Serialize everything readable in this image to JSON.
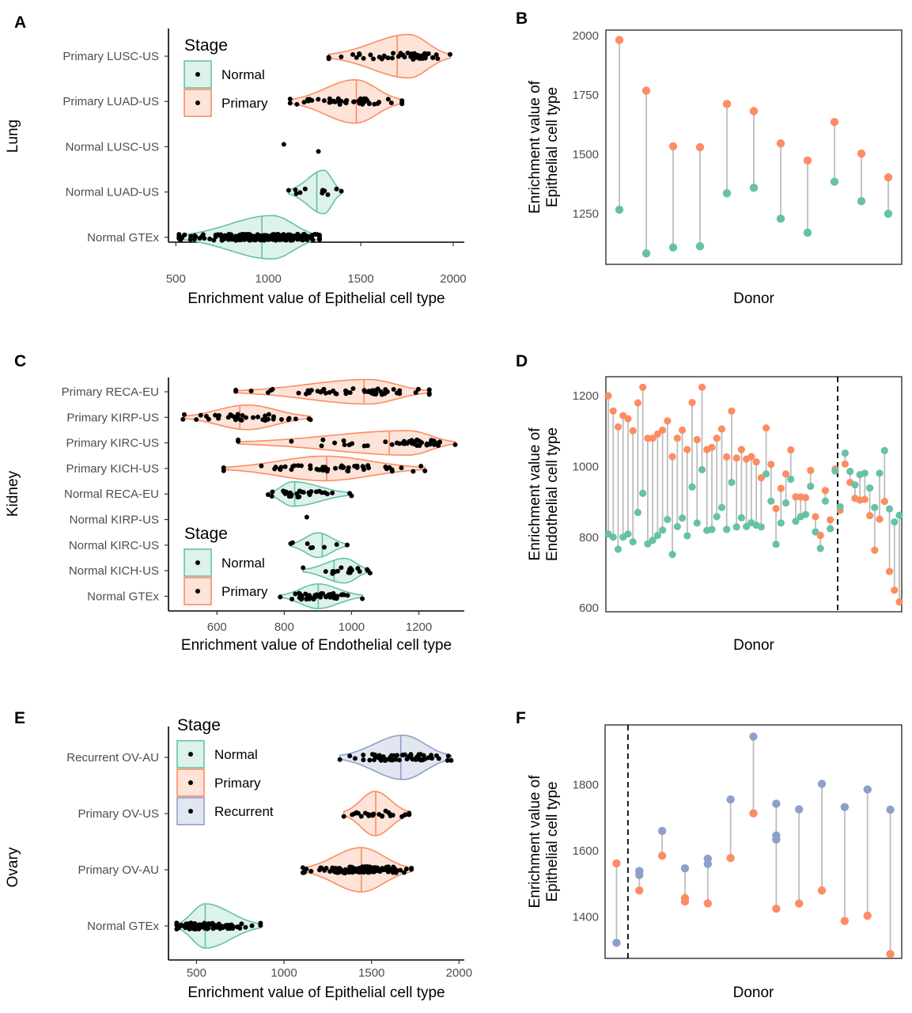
{
  "colors": {
    "Normal": {
      "stroke": "#66C2A5",
      "fill": "#DDF2EA"
    },
    "Primary": {
      "stroke": "#FC8D62",
      "fill": "#FDE3D8"
    },
    "Recurrent": {
      "stroke": "#8DA0CB",
      "fill": "#E1E6F1"
    },
    "segment": "#BDBDBD",
    "point": "#000000"
  },
  "chart_data": [
    {
      "panel": "A",
      "type": "violin",
      "orientation": "horizontal",
      "facet_label": "Lung",
      "xlabel": "Enrichment value of Epithelial cell type",
      "xlim": [
        460,
        2060
      ],
      "xticks": [
        500,
        1000,
        1500,
        2000
      ],
      "legend": {
        "title": "Stage",
        "entries": [
          "Normal",
          "Primary"
        ],
        "placement": "top-left"
      },
      "categories": [
        {
          "label": "Primary LUSC-US",
          "stage": "Primary",
          "min": 1327,
          "median": 1697,
          "max": 1983,
          "mode": 1760,
          "n": 50
        },
        {
          "label": "Primary LUAD-US",
          "stage": "Primary",
          "min": 1118,
          "median": 1476,
          "max": 1723,
          "mode": 1470,
          "n": 45
        },
        {
          "label": "Normal LUSC-US",
          "stage": "Normal",
          "points": [
            1084,
            1271
          ],
          "n": 2
        },
        {
          "label": "Normal LUAD-US",
          "stage": "Normal",
          "min": 1110,
          "median": 1262,
          "max": 1395,
          "mode": 1300,
          "n": 12
        },
        {
          "label": "Normal GTEx",
          "stage": "Normal",
          "min": 517,
          "median": 965,
          "max": 1277,
          "mode": 1020,
          "n": 250
        }
      ]
    },
    {
      "panel": "B",
      "type": "dumbbell",
      "xlabel": "Donor",
      "ylabel": "Enrichment value of Epithelial cell type",
      "ylim": [
        1037,
        2023
      ],
      "yticks": [
        1250,
        1500,
        1750,
        2000
      ],
      "series": [
        {
          "name": "Primary",
          "values": [
            1981,
            1768,
            1534,
            1530,
            1712,
            1682,
            1546,
            1474,
            1636,
            1503,
            1403
          ]
        },
        {
          "name": "Normal",
          "values": [
            1267,
            1083,
            1108,
            1113,
            1336,
            1359,
            1229,
            1170,
            1385,
            1303,
            1250
          ]
        }
      ]
    },
    {
      "panel": "C",
      "type": "violin",
      "orientation": "horizontal",
      "facet_label": "Kidney",
      "xlabel": "Enrichment value of Endothelial cell type",
      "xlim": [
        456,
        1335
      ],
      "xticks": [
        600,
        800,
        1000,
        1200
      ],
      "legend": {
        "title": "Stage",
        "entries": [
          "Normal",
          "Primary"
        ],
        "placement": "bottom-left"
      },
      "categories": [
        {
          "label": "Primary RECA-EU",
          "stage": "Primary",
          "min": 656,
          "median": 1037,
          "max": 1231,
          "mode": 1050,
          "n": 55
        },
        {
          "label": "Primary KIRP-US",
          "stage": "Primary",
          "min": 499,
          "median": 668,
          "max": 878,
          "mode": 690,
          "n": 35
        },
        {
          "label": "Primary KIRC-US",
          "stage": "Primary",
          "min": 663,
          "median": 1112,
          "max": 1308,
          "mode": 1170,
          "n": 50
        },
        {
          "label": "Primary KICH-US",
          "stage": "Primary",
          "min": 620,
          "median": 926,
          "max": 1218,
          "mode": 920,
          "n": 50
        },
        {
          "label": "Normal RECA-EU",
          "stage": "Normal",
          "min": 752,
          "median": 831,
          "max": 1000,
          "mode": 825,
          "n": 30
        },
        {
          "label": "Normal KIRP-US",
          "stage": "Normal",
          "points": [
            867
          ],
          "n": 1
        },
        {
          "label": "Normal KIRC-US",
          "stage": "Normal",
          "min": 819,
          "median": 913,
          "max": 987,
          "mode": 900,
          "n": 8
        },
        {
          "label": "Normal KICH-US",
          "stage": "Normal",
          "min": 856,
          "median": 948,
          "max": 1055,
          "mode": 980,
          "n": 18
        },
        {
          "label": "Normal GTEx",
          "stage": "Normal",
          "min": 788,
          "median": 901,
          "max": 1032,
          "mode": 900,
          "n": 45
        }
      ]
    },
    {
      "panel": "D",
      "type": "dumbbell",
      "xlabel": "Donor",
      "ylabel": "Enrichment value of Endothelial cell type",
      "ylim": [
        589,
        1254
      ],
      "yticks": [
        600,
        800,
        1000,
        1200
      ],
      "divider_after_donor": 47,
      "series": [
        {
          "name": "Primary",
          "values": [
            1200,
            1157,
            1112,
            1144,
            1135,
            1101,
            1180,
            1224,
            1080,
            1080,
            1092,
            1103,
            1129,
            1028,
            1080,
            1103,
            1048,
            1181,
            1076,
            1224,
            1048,
            1054,
            1080,
            1106,
            1027,
            1157,
            1024,
            1048,
            1021,
            1028,
            1013,
            968,
            1109,
            1006,
            881,
            938,
            979,
            1047,
            914,
            914,
            912,
            989,
            858,
            805,
            932,
            849,
            993,
            876,
            1007,
            955,
            910,
            905,
            907,
            861,
            763,
            851,
            901,
            703,
            650,
            617
          ]
        },
        {
          "name": "Normal",
          "values": [
            809,
            800,
            766,
            800,
            809,
            787,
            870,
            924,
            781,
            791,
            805,
            820,
            850,
            751,
            830,
            854,
            804,
            942,
            840,
            991,
            819,
            822,
            858,
            884,
            822,
            955,
            829,
            855,
            830,
            841,
            834,
            829,
            979,
            902,
            780,
            840,
            897,
            964,
            845,
            858,
            864,
            944,
            815,
            768,
            902,
            824,
            987,
            886,
            1038,
            986,
            948,
            977,
            981,
            939,
            884,
            981,
            1045,
            880,
            843,
            862
          ]
        }
      ]
    },
    {
      "panel": "E",
      "type": "violin",
      "orientation": "horizontal",
      "facet_label": "Ovary",
      "xlabel": "Enrichment value of Epithelial cell type",
      "xlim": [
        340,
        2030
      ],
      "xticks": [
        500,
        1000,
        1500,
        2000
      ],
      "legend": {
        "title": "Stage",
        "entries": [
          "Normal",
          "Primary",
          "Recurrent"
        ],
        "placement": "top-left"
      },
      "categories": [
        {
          "label": "Recurrent OV-AU",
          "stage": "Recurrent",
          "min": 1319,
          "median": 1667,
          "max": 1955,
          "mode": 1680,
          "n": 60
        },
        {
          "label": "Primary OV-US",
          "stage": "Primary",
          "min": 1342,
          "median": 1524,
          "max": 1715,
          "mode": 1520,
          "n": 25
        },
        {
          "label": "Primary OV-AU",
          "stage": "Primary",
          "min": 1108,
          "median": 1442,
          "max": 1728,
          "mode": 1440,
          "n": 120
        },
        {
          "label": "Normal GTEx",
          "stage": "Normal",
          "min": 387,
          "median": 550,
          "max": 866,
          "mode": 550,
          "n": 90
        }
      ]
    },
    {
      "panel": "F",
      "type": "dumbbell",
      "xlabel": "Donor",
      "ylabel": "Enrichment value of Epithelial cell type",
      "ylim": [
        1275,
        1980
      ],
      "yticks": [
        1400,
        1600,
        1800
      ],
      "divider_after_donor": 1,
      "donors": [
        {
          "Primary": [
            1562
          ],
          "Recurrent": [
            1322
          ]
        },
        {
          "Primary": [
            1480
          ],
          "Recurrent": [
            1539,
            1527
          ]
        },
        {
          "Primary": [
            1585
          ],
          "Recurrent": [
            1660
          ]
        },
        {
          "Primary": [
            1457,
            1447
          ],
          "Recurrent": [
            1547
          ]
        },
        {
          "Primary": [
            1441
          ],
          "Recurrent": [
            1576,
            1560
          ]
        },
        {
          "Primary": [
            1578
          ],
          "Recurrent": [
            1755
          ]
        },
        {
          "Primary": [
            1713
          ],
          "Recurrent": [
            1945
          ]
        },
        {
          "Primary": [
            1425
          ],
          "Recurrent": [
            1742,
            1646,
            1634
          ]
        },
        {
          "Primary": [
            1441
          ],
          "Recurrent": [
            1725
          ]
        },
        {
          "Primary": [
            1480
          ],
          "Recurrent": [
            1802
          ]
        },
        {
          "Primary": [
            1388
          ],
          "Recurrent": [
            1732
          ]
        },
        {
          "Primary": [
            1404
          ],
          "Recurrent": [
            1785
          ]
        },
        {
          "Primary": [
            1288
          ],
          "Recurrent": [
            1724
          ]
        }
      ]
    }
  ]
}
